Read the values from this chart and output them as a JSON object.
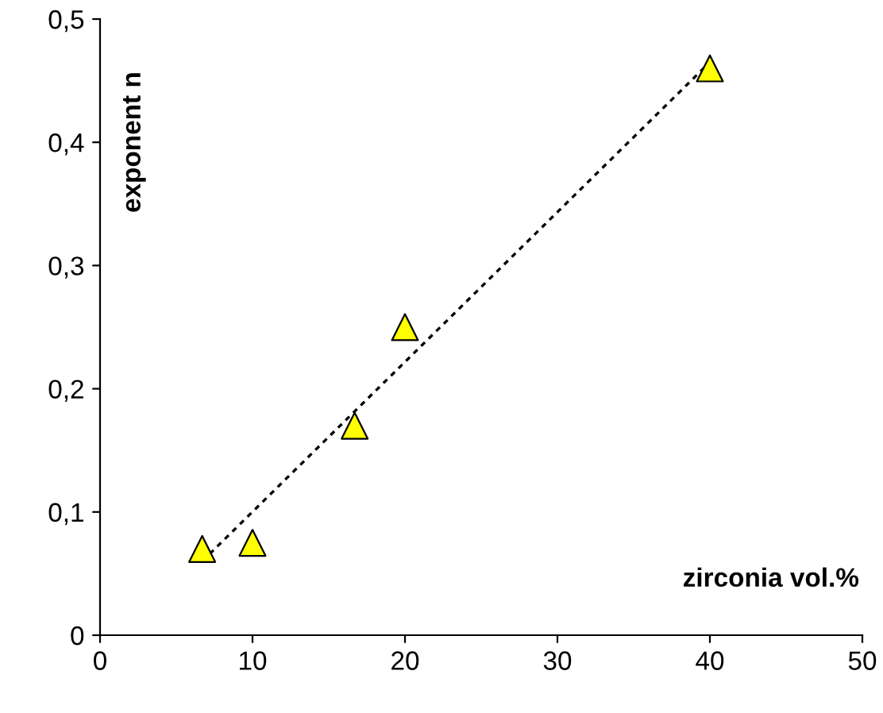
{
  "chart_data": {
    "type": "scatter",
    "xlabel": "zirconia vol.%",
    "ylabel": "exponent n",
    "series": [
      {
        "color": "#ffff00",
        "x": [
          6.7,
          10,
          16.7,
          20,
          40
        ],
        "values": [
          0.07,
          0.075,
          0.17,
          0.25,
          0.46
        ],
        "marker": "triangle"
      },
      {
        "type": "line",
        "color": "#000000",
        "x": [
          6.7,
          40
        ],
        "values": [
          0.06,
          0.465
        ],
        "line_style": "dotted",
        "marker": "none"
      }
    ],
    "xlim": [
      0,
      50
    ],
    "ylim": [
      0,
      0.5
    ],
    "xticks": [
      0,
      10,
      20,
      30,
      40,
      50
    ],
    "yticks": [
      0,
      {
        "value": 0.1,
        "label": "0,1"
      },
      {
        "value": 0.2,
        "label": "0,2"
      },
      {
        "value": 0.3,
        "label": "0,3"
      },
      {
        "value": 0.4,
        "label": "0,4"
      },
      {
        "value": 0.5,
        "label": "0,5"
      }
    ],
    "grid": false,
    "legend": false
  }
}
